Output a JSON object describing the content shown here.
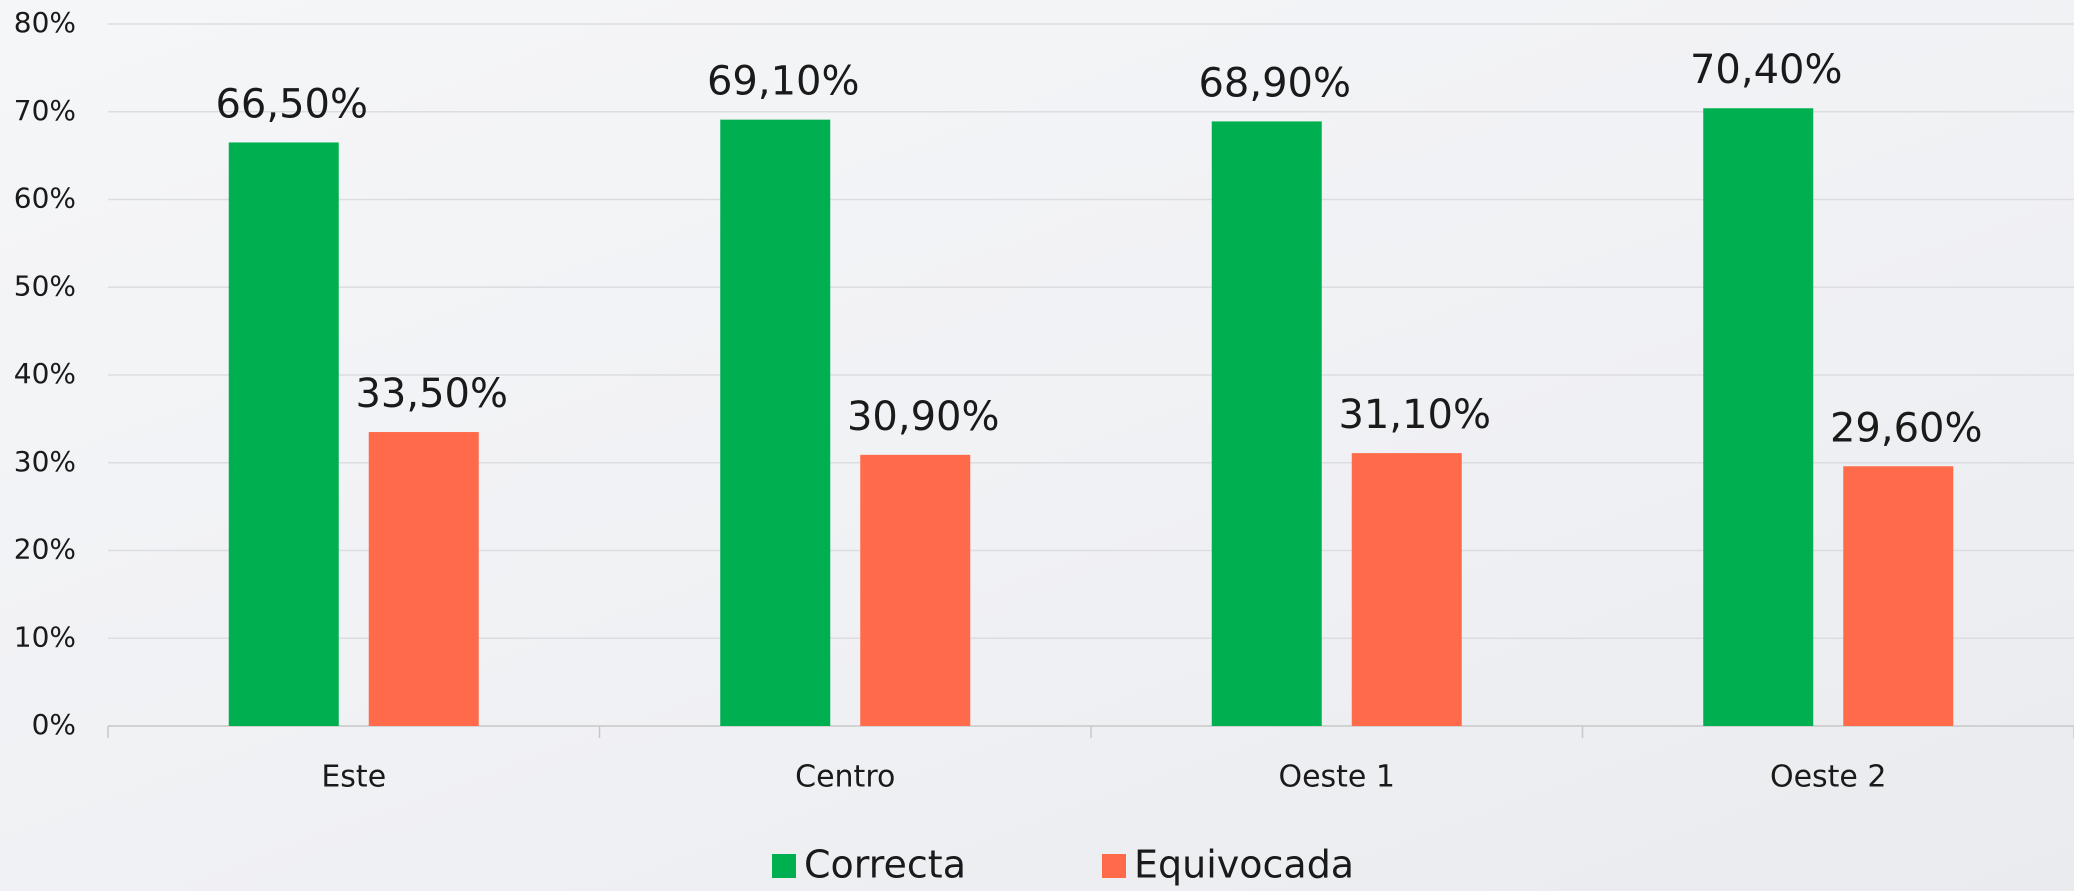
{
  "chart_data": {
    "type": "bar",
    "categories": [
      "Este",
      "Centro",
      "Oeste 1",
      "Oeste 2"
    ],
    "series": [
      {
        "name": "Correcta",
        "color": "#00b050",
        "values": [
          66.5,
          69.1,
          68.9,
          70.4
        ],
        "value_labels": [
          "66,50%",
          "69,10%",
          "68,90%",
          "70,40%"
        ]
      },
      {
        "name": "Equivocada",
        "color": "#ff6b4a",
        "values": [
          33.5,
          30.9,
          31.1,
          29.6
        ],
        "value_labels": [
          "33,50%",
          "30,90%",
          "31,10%",
          "29,60%"
        ]
      }
    ],
    "ylim": [
      0,
      80
    ],
    "yticks": [
      {
        "value": 0,
        "label": "0%"
      },
      {
        "value": 10,
        "label": "10%"
      },
      {
        "value": 20,
        "label": "20%"
      },
      {
        "value": 30,
        "label": "30%"
      },
      {
        "value": 40,
        "label": "40%"
      },
      {
        "value": 50,
        "label": "50%"
      },
      {
        "value": 60,
        "label": "60%"
      },
      {
        "value": 70,
        "label": "70%"
      },
      {
        "value": 80,
        "label": "80%"
      }
    ],
    "grid": true,
    "legend": "bottom"
  }
}
